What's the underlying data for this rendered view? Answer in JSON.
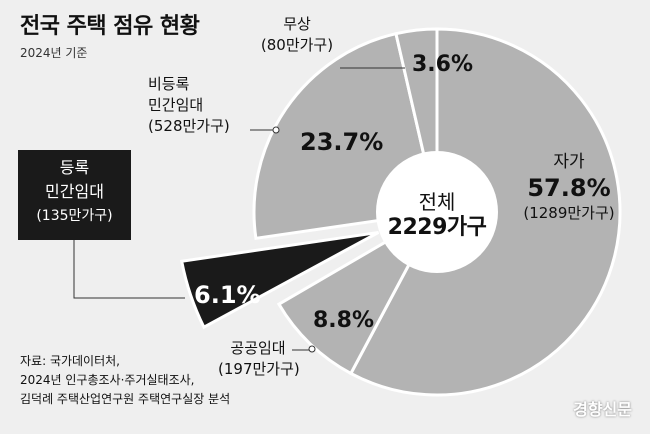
{
  "header": {
    "title": "전국 주택 점유 현황",
    "subtitle": "2024년 기준"
  },
  "center": {
    "label": "전체",
    "value": "2229가구"
  },
  "chart_data": {
    "type": "pie",
    "title": "전국 주택 점유 현황",
    "subtitle": "2024년 기준",
    "total_label": "전체 2229가구",
    "slices": [
      {
        "name": "자가",
        "percent": 57.8,
        "percent_label": "57.8%",
        "count_label": "(1289만가구)",
        "color": "#b3b3b3"
      },
      {
        "name": "공공임대",
        "percent": 8.8,
        "percent_label": "8.8%",
        "count_label": "(197만가구)",
        "color": "#b3b3b3"
      },
      {
        "name": "등록 민간임대",
        "percent": 6.1,
        "percent_label": "6.1%",
        "count_label": "(135만가구)",
        "color": "#1a1a1a",
        "exploded": true
      },
      {
        "name": "비등록 민간임대",
        "percent": 23.7,
        "percent_label": "23.7%",
        "count_label": "(528만가구)",
        "color": "#b3b3b3"
      },
      {
        "name": "무상",
        "percent": 3.6,
        "percent_label": "3.6%",
        "count_label": "(80만가구)",
        "color": "#b3b3b3"
      }
    ]
  },
  "labels": {
    "jaga": {
      "name": "자가",
      "count": "(1289만가구)"
    },
    "gonggong": {
      "name": "공공임대",
      "count": "(197만가구)"
    },
    "deungrok": {
      "line1": "등록",
      "line2": "민간임대",
      "count": "(135만가구)"
    },
    "bideungrok": {
      "line1": "비등록",
      "line2": "민간임대",
      "count": "(528만가구)"
    },
    "musang": {
      "name": "무상",
      "count": "(80만가구)"
    }
  },
  "source": {
    "line1": "자료: 국가데이터처,",
    "line2": "2024년 인구총조사·주거실태조사,",
    "line3": "김덕례 주택산업연구원 주택연구실장 분석"
  },
  "brand": "경향신문"
}
